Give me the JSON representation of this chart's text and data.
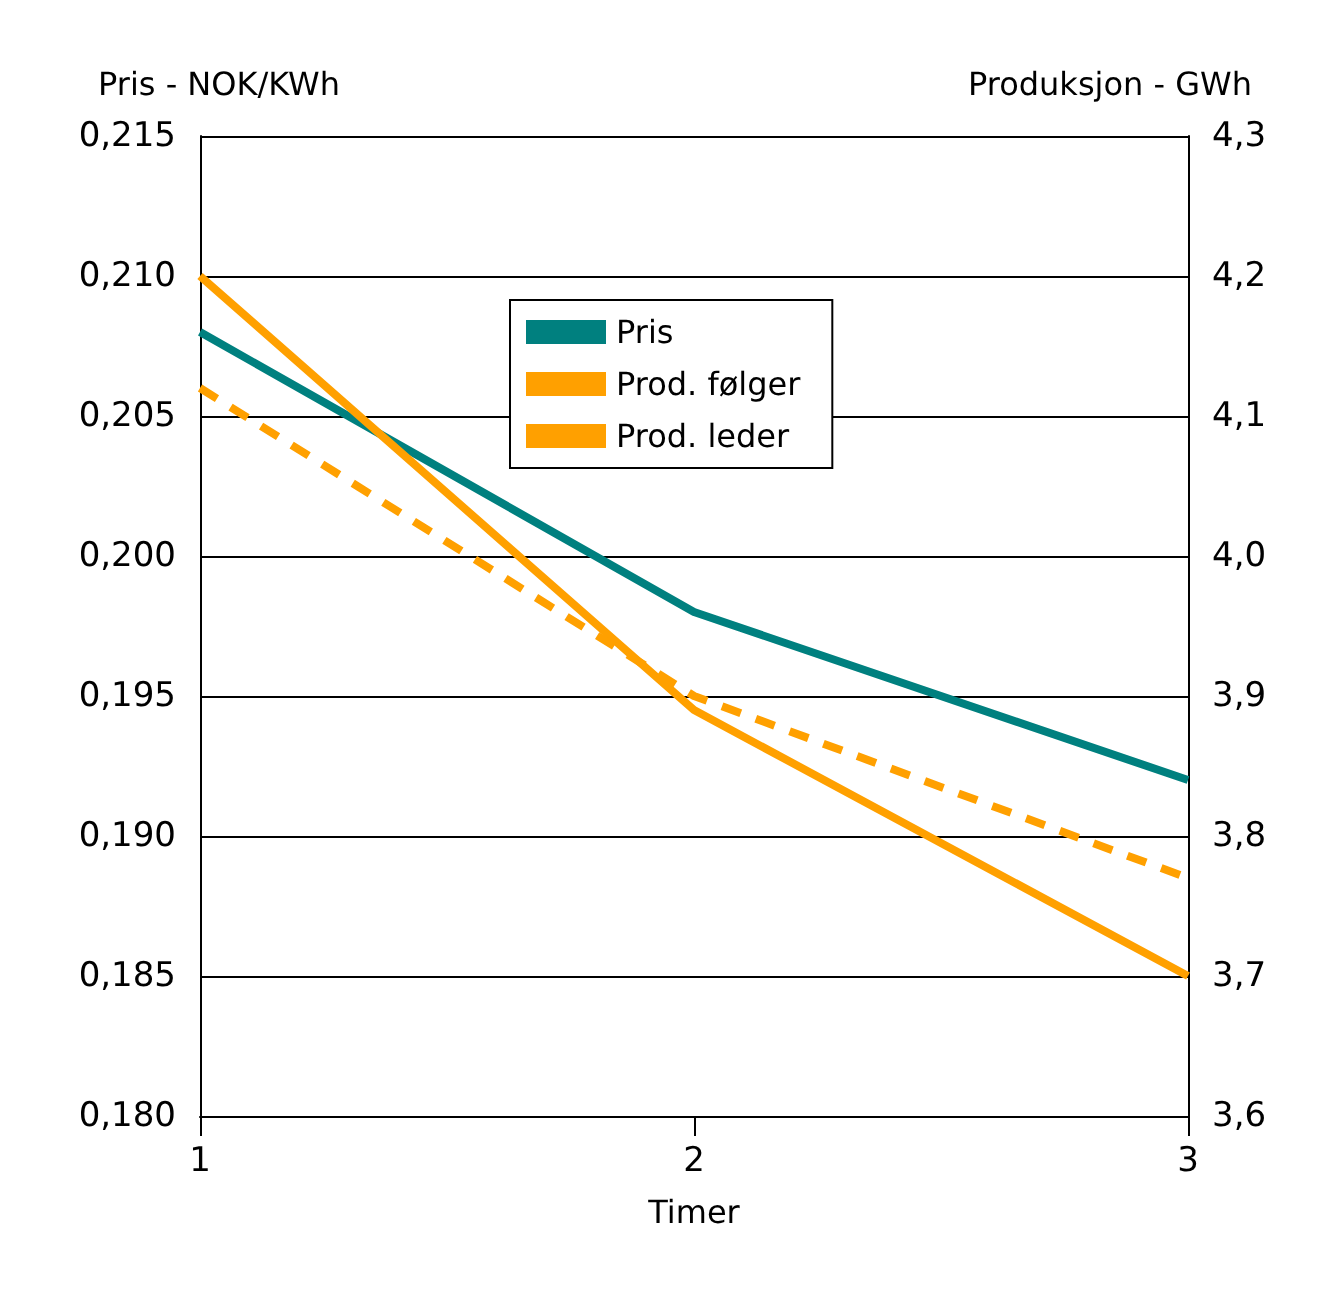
{
  "chart_data": {
    "type": "line",
    "xlabel": "Timer",
    "ylabel": "Pris - NOK/KWh",
    "y2label": "Produksjon - GWh",
    "x": [
      1,
      2,
      3
    ],
    "xlim": [
      1,
      3
    ],
    "xticks": [
      1,
      2,
      3
    ],
    "ylim": [
      0.18,
      0.215
    ],
    "yticks": [
      {
        "value": 0.18,
        "label": "0,180"
      },
      {
        "value": 0.185,
        "label": "0,185"
      },
      {
        "value": 0.19,
        "label": "0,190"
      },
      {
        "value": 0.195,
        "label": "0,195"
      },
      {
        "value": 0.2,
        "label": "0,200"
      },
      {
        "value": 0.205,
        "label": "0,205"
      },
      {
        "value": 0.21,
        "label": "0,210"
      },
      {
        "value": 0.215,
        "label": "0,215"
      }
    ],
    "y2lim": [
      3.6,
      4.3
    ],
    "y2ticks": [
      {
        "value": 3.6,
        "label": "3,6"
      },
      {
        "value": 3.7,
        "label": "3,7"
      },
      {
        "value": 3.8,
        "label": "3,8"
      },
      {
        "value": 3.9,
        "label": "3,9"
      },
      {
        "value": 4.0,
        "label": "4,0"
      },
      {
        "value": 4.1,
        "label": "4,1"
      },
      {
        "value": 4.2,
        "label": "4,2"
      },
      {
        "value": 4.3,
        "label": "4,3"
      }
    ],
    "series": [
      {
        "name": "Pris",
        "color": "#00807f",
        "values": [
          0.208,
          0.198,
          0.192
        ]
      },
      {
        "name": "Prod. følger",
        "color": "#ffa000",
        "values": [
          4.2,
          3.89,
          3.7
        ],
        "axis": "y2"
      },
      {
        "name": "Prod. leder",
        "color": "#ffa000",
        "values": [
          4.12,
          3.9,
          3.77
        ],
        "axis": "y2",
        "line_style": "dashed"
      }
    ],
    "grid": "y",
    "legend": "top",
    "marker": "none"
  }
}
